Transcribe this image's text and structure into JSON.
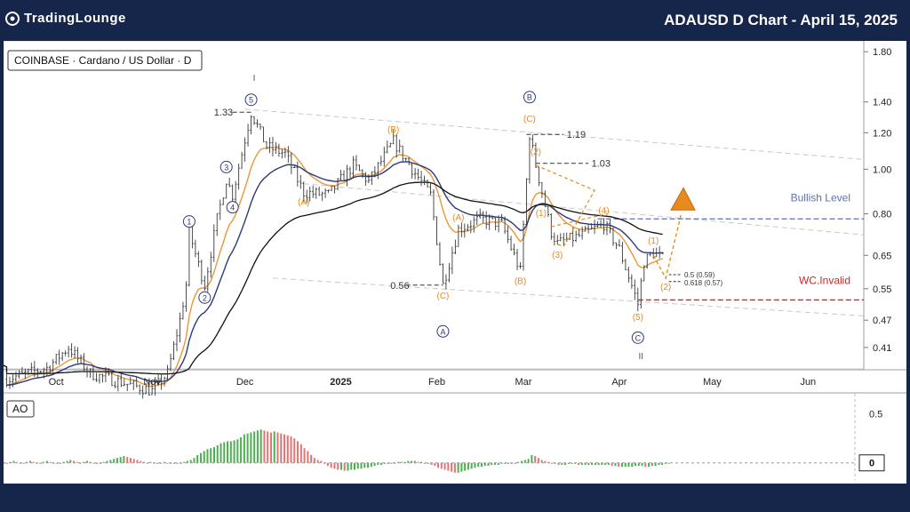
{
  "header": {
    "brand": "TradingLounge",
    "chart_title": "ADAUSD D Chart - April 15, 2025"
  },
  "colors": {
    "frame": "#16264a",
    "candle": "#3a3a3a",
    "ema_orange": "#e8973a",
    "ema_navy": "#2e3a78",
    "sma_black": "#111111",
    "wave_orange": "#e88a1f",
    "wave_navy": "#2e3a78",
    "bullish_level": "#6070b0",
    "invalidation": "#e02020",
    "ao_green": "#4caf50",
    "ao_red": "#e57373"
  },
  "chart_data": [
    {
      "type": "candlestick",
      "symbol_label": "COINBASE · Cardano / US Dollar · D",
      "x_tick_labels": [
        "Oct",
        "Nov",
        "Dec",
        "2025",
        "Feb",
        "Mar",
        "Apr",
        "May",
        "Jun"
      ],
      "y_scale": "log",
      "y_tick_labels": [
        "1.80",
        "1.40",
        "1.20",
        "1.00",
        "0.80",
        "0.65",
        "0.55",
        "0.47",
        "0.41"
      ],
      "y_ticks": [
        1.8,
        1.4,
        1.2,
        1.0,
        0.8,
        0.65,
        0.55,
        0.47,
        0.41
      ],
      "ylim": [
        0.37,
        1.85
      ],
      "price_path": [
        [
          "2024-09-15",
          0.35
        ],
        [
          "2024-09-28",
          0.37
        ],
        [
          "2024-10-05",
          0.41
        ],
        [
          "2024-10-12",
          0.36
        ],
        [
          "2024-10-25",
          0.34
        ],
        [
          "2024-11-01",
          0.33
        ],
        [
          "2024-11-06",
          0.36
        ],
        [
          "2024-11-10",
          0.47
        ],
        [
          "2024-11-12",
          0.56
        ],
        [
          "2024-11-13",
          0.73
        ],
        [
          "2024-11-16",
          0.62
        ],
        [
          "2024-11-18",
          0.56
        ],
        [
          "2024-11-22",
          0.78
        ],
        [
          "2024-11-25",
          0.95
        ],
        [
          "2024-11-27",
          0.88
        ],
        [
          "2024-12-03",
          1.33
        ],
        [
          "2024-12-08",
          1.12
        ],
        [
          "2024-12-14",
          1.08
        ],
        [
          "2024-12-20",
          0.89
        ],
        [
          "2024-12-28",
          0.88
        ],
        [
          "2025-01-05",
          1.02
        ],
        [
          "2025-01-10",
          0.94
        ],
        [
          "2025-01-18",
          1.15
        ],
        [
          "2025-01-25",
          0.98
        ],
        [
          "2025-01-30",
          0.88
        ],
        [
          "2025-02-03",
          0.56
        ],
        [
          "2025-02-08",
          0.74
        ],
        [
          "2025-02-15",
          0.78
        ],
        [
          "2025-02-22",
          0.76
        ],
        [
          "2025-02-28",
          0.6
        ],
        [
          "2025-03-03",
          1.19
        ],
        [
          "2025-03-05",
          1.02
        ],
        [
          "2025-03-10",
          0.73
        ],
        [
          "2025-03-12",
          0.69
        ],
        [
          "2025-03-20",
          0.72
        ],
        [
          "2025-03-27",
          0.76
        ],
        [
          "2025-04-01",
          0.67
        ],
        [
          "2025-04-07",
          0.51
        ],
        [
          "2025-04-09",
          0.63
        ],
        [
          "2025-04-12",
          0.66
        ],
        [
          "2025-04-15",
          0.64
        ]
      ],
      "annotations": {
        "price_labels": [
          {
            "text": "1.33",
            "date": "2024-12-03",
            "price": 1.33
          },
          {
            "text": "1.19",
            "date": "2025-03-03",
            "price": 1.19
          },
          {
            "text": "1.03",
            "date": "2025-03-05",
            "price": 1.03
          },
          {
            "text": "0.56",
            "date": "2025-02-03",
            "price": 0.56
          }
        ],
        "fib_labels": [
          "0.5 (0.59)",
          "0.618 (0.57)"
        ],
        "level_labels": {
          "bullish": "Bullish Level",
          "invalidation": "WC.Invalid"
        },
        "levels": {
          "bullish": 0.78,
          "invalidation": 0.52
        },
        "degree_labels": [
          "I",
          "II"
        ],
        "waves_primary": [
          {
            "label": "1",
            "date": "2024-11-13",
            "price": 0.73
          },
          {
            "label": "2",
            "date": "2024-11-18",
            "price": 0.56
          },
          {
            "label": "3",
            "date": "2024-11-25",
            "price": 0.95
          },
          {
            "label": "4",
            "date": "2024-11-27",
            "price": 0.88
          },
          {
            "label": "5",
            "date": "2024-12-03",
            "price": 1.33
          },
          {
            "label": "A",
            "date": "2025-02-03",
            "price": 0.56
          },
          {
            "label": "B",
            "date": "2025-03-03",
            "price": 1.19
          },
          {
            "label": "C",
            "date": "2025-04-07",
            "price": 0.51
          }
        ],
        "waves_minor": [
          {
            "label": "(A)",
            "date": "2024-12-20",
            "price": 0.89
          },
          {
            "label": "(B)",
            "date": "2025-01-18",
            "price": 1.15
          },
          {
            "label": "(C)",
            "date": "2025-02-03",
            "price": 0.56
          },
          {
            "label": "(A)",
            "date": "2025-02-08",
            "price": 0.74
          },
          {
            "label": "(B)",
            "date": "2025-02-28",
            "price": 0.6
          },
          {
            "label": "(C)",
            "date": "2025-03-03",
            "price": 1.19
          },
          {
            "label": "(1)",
            "date": "2025-03-09",
            "price": 0.75
          },
          {
            "label": "(2)",
            "date": "2025-03-05",
            "price": 1.02
          },
          {
            "label": "(3)",
            "date": "2025-03-12",
            "price": 0.69
          },
          {
            "label": "(4)",
            "date": "2025-03-27",
            "price": 0.76
          },
          {
            "label": "(5)",
            "date": "2025-04-07",
            "price": 0.51
          },
          {
            "label": "(1)",
            "date": "2025-04-12",
            "price": 0.66
          },
          {
            "label": "(2)",
            "date": "2025-04-16",
            "price": 0.58
          }
        ]
      }
    },
    {
      "type": "bar",
      "indicator_label": "AO",
      "y_tick_labels": [
        "0.5",
        "0"
      ],
      "y_ticks": [
        0.5,
        0
      ],
      "ylim": [
        -0.12,
        0.55
      ],
      "x_range": [
        "2024-09-14",
        "2025-04-17"
      ],
      "values": [
        0.0,
        -0.01,
        0.01,
        0.02,
        0.01,
        0.0,
        -0.01,
        0.01,
        0.02,
        0.01,
        0.0,
        -0.01,
        0.01,
        0.02,
        0.01,
        0.0,
        -0.01,
        0.0,
        0.01,
        0.02,
        0.03,
        0.02,
        0.01,
        0.0,
        0.01,
        0.02,
        0.01,
        0.0,
        -0.01,
        0.0,
        0.01,
        0.02,
        0.03,
        0.04,
        0.05,
        0.06,
        0.07,
        0.06,
        0.05,
        0.04,
        0.03,
        0.02,
        0.01,
        0.0,
        0.01,
        0.0,
        -0.01,
        0.0,
        0.01,
        0.0,
        0.0,
        -0.01,
        0.0,
        0.0,
        0.01,
        0.02,
        0.03,
        0.05,
        0.08,
        0.1,
        0.12,
        0.14,
        0.15,
        0.16,
        0.18,
        0.2,
        0.21,
        0.22,
        0.22,
        0.23,
        0.24,
        0.26,
        0.29,
        0.3,
        0.31,
        0.32,
        0.33,
        0.34,
        0.33,
        0.32,
        0.31,
        0.32,
        0.31,
        0.3,
        0.29,
        0.28,
        0.27,
        0.25,
        0.22,
        0.19,
        0.15,
        0.12,
        0.08,
        0.05,
        0.03,
        0.02,
        0.0,
        -0.03,
        -0.05,
        -0.06,
        -0.07,
        -0.07,
        -0.08,
        -0.08,
        -0.07,
        -0.07,
        -0.06,
        -0.06,
        -0.05,
        -0.05,
        -0.04,
        -0.03,
        -0.02,
        -0.02,
        -0.01,
        -0.01,
        0.0,
        0.0,
        0.01,
        0.01,
        0.01,
        0.02,
        0.02,
        0.02,
        0.01,
        0.01,
        0.0,
        -0.01,
        -0.02,
        -0.03,
        -0.05,
        -0.06,
        -0.07,
        -0.08,
        -0.09,
        -0.1,
        -0.1,
        -0.09,
        -0.08,
        -0.07,
        -0.06,
        -0.05,
        -0.04,
        -0.04,
        -0.03,
        -0.03,
        -0.02,
        -0.02,
        -0.02,
        -0.01,
        -0.01,
        -0.01,
        0.0,
        0.0,
        0.01,
        0.02,
        0.03,
        0.04,
        0.08,
        0.07,
        0.05,
        0.03,
        0.02,
        0.01,
        0.0,
        -0.01,
        -0.02,
        -0.02,
        -0.02,
        -0.01,
        -0.01,
        -0.01,
        -0.02,
        -0.02,
        -0.02,
        -0.02,
        -0.02,
        -0.02,
        -0.02,
        -0.02,
        -0.02,
        -0.02,
        -0.03,
        -0.03,
        -0.04,
        -0.04,
        -0.04,
        -0.04,
        -0.04,
        -0.03,
        -0.03,
        -0.03,
        -0.04,
        -0.04,
        -0.03,
        -0.03,
        -0.02,
        -0.02,
        -0.01,
        0.0
      ]
    }
  ]
}
